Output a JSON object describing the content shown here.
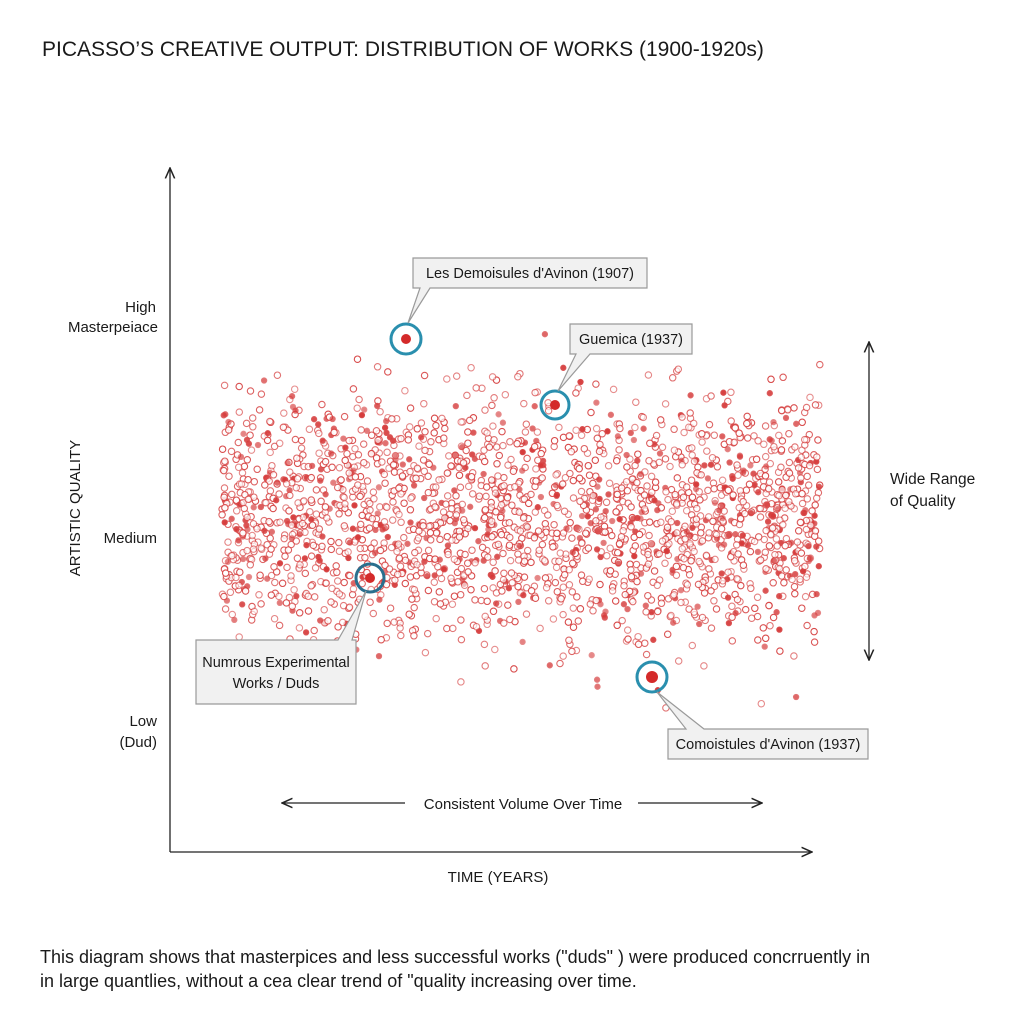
{
  "header": {
    "title": "PICASSO’S CREATIVE OUTPUT: DISTRIBUTION OF WORKS (1900-1920s)"
  },
  "y_axis": {
    "label": "ARTISTIC QUALITY",
    "levels": [
      [
        "High",
        "Masterpeiace"
      ],
      [
        "Medium"
      ],
      [
        "Low",
        "(Dud)"
      ]
    ]
  },
  "x_axis": {
    "label": "TIME (YEARS)"
  },
  "callouts": [
    {
      "lines": [
        "Les Demoisules d'Avinon (1907)"
      ]
    },
    {
      "lines": [
        "Guemica (1937)"
      ]
    },
    {
      "lines": [
        "Numrous Experimental",
        "Works / Duds"
      ]
    },
    {
      "lines": [
        "Comoistules d'Avinon (1937)"
      ]
    }
  ],
  "range_note": {
    "lines": [
      "Wide Range",
      "of Quality"
    ]
  },
  "volume_note": {
    "label": "Consistent Volume Over Time"
  },
  "caption": {
    "lines": [
      "This diagram shows that masterpices and less successful works (\"duds\" )  were produced concrruently in",
      "in large quantlies, without a cea clear trend of \"quality increasing over time."
    ]
  }
}
